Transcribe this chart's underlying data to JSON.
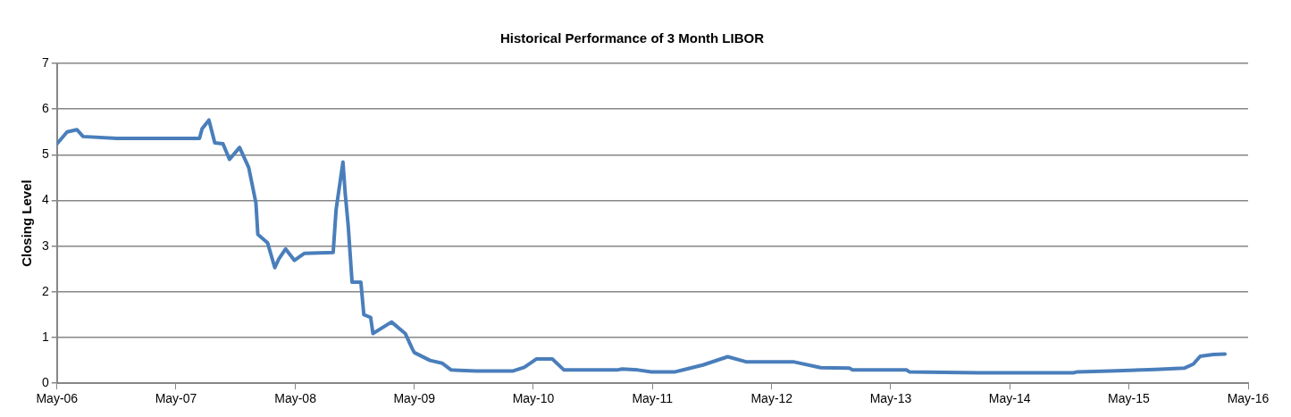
{
  "chart_data": {
    "type": "line",
    "title": "Historical Performance of 3 Month LIBOR",
    "ylabel": "Closing Level",
    "x": [
      "2006-05-01",
      "2006-06-01",
      "2006-07-01",
      "2006-07-20",
      "2006-11-01",
      "2007-07-12",
      "2007-07-20",
      "2007-08-10",
      "2007-08-28",
      "2007-09-22",
      "2007-10-12",
      "2007-11-12",
      "2007-12-10",
      "2008-01-01",
      "2008-01-07",
      "2008-02-06",
      "2008-02-28",
      "2008-03-12",
      "2008-04-01",
      "2008-04-28",
      "2008-05-28",
      "2008-08-25",
      "2008-09-03",
      "2008-09-24",
      "2008-10-01",
      "2008-10-10",
      "2008-10-22",
      "2008-11-18",
      "2008-11-27",
      "2008-12-18",
      "2008-12-25",
      "2009-02-20",
      "2009-04-03",
      "2009-04-25",
      "2009-05-01",
      "2009-06-18",
      "2009-07-25",
      "2009-08-22",
      "2009-11-06",
      "2010-02-28",
      "2010-04-03",
      "2010-05-10",
      "2010-06-28",
      "2010-08-03",
      "2011-01-12",
      "2011-01-28",
      "2011-03-18",
      "2011-04-28",
      "2011-07-10",
      "2011-10-03",
      "2011-12-18",
      "2012-02-12",
      "2012-04-08",
      "2012-07-06",
      "2012-09-28",
      "2012-12-25",
      "2013-01-04",
      "2013-06-18",
      "2013-06-28",
      "2014-01-25",
      "2014-02-22",
      "2014-11-12",
      "2014-11-25",
      "2015-03-03",
      "2015-07-22",
      "2015-10-18",
      "2015-11-15",
      "2015-12-06",
      "2016-01-15",
      "2016-02-20"
    ],
    "series": [
      {
        "color": "#4a7ebb",
        "values": [
          5.24,
          5.5,
          5.55,
          5.4,
          5.36,
          5.36,
          5.57,
          5.76,
          5.26,
          5.24,
          4.9,
          5.16,
          4.72,
          3.95,
          3.26,
          3.07,
          2.53,
          2.73,
          2.94,
          2.69,
          2.84,
          2.86,
          3.8,
          4.84,
          4.15,
          3.46,
          2.21,
          2.21,
          1.5,
          1.44,
          1.09,
          1.34,
          1.09,
          0.75,
          0.67,
          0.5,
          0.44,
          0.29,
          0.27,
          0.27,
          0.35,
          0.53,
          0.53,
          0.29,
          0.29,
          0.31,
          0.29,
          0.25,
          0.25,
          0.4,
          0.58,
          0.47,
          0.47,
          0.47,
          0.34,
          0.33,
          0.29,
          0.29,
          0.25,
          0.23,
          0.23,
          0.23,
          0.25,
          0.27,
          0.3,
          0.33,
          0.42,
          0.59,
          0.63,
          0.64
        ]
      }
    ],
    "xlim": [
      "2006-05-01",
      "2016-05-01"
    ],
    "xticks": [
      {
        "value": "2006-05-01",
        "label": "May-06"
      },
      {
        "value": "2007-05-01",
        "label": "May-07"
      },
      {
        "value": "2008-05-01",
        "label": "May-08"
      },
      {
        "value": "2009-05-01",
        "label": "May-09"
      },
      {
        "value": "2010-05-01",
        "label": "May-10"
      },
      {
        "value": "2011-05-01",
        "label": "May-11"
      },
      {
        "value": "2012-05-01",
        "label": "May-12"
      },
      {
        "value": "2013-05-01",
        "label": "May-13"
      },
      {
        "value": "2014-05-01",
        "label": "May-14"
      },
      {
        "value": "2015-05-01",
        "label": "May-15"
      },
      {
        "value": "2016-05-01",
        "label": "May-16"
      }
    ],
    "ylim": [
      0,
      7
    ],
    "yticks": [
      0,
      1,
      2,
      3,
      4,
      5,
      6,
      7
    ],
    "grid": "y",
    "legend": false,
    "marker": "none",
    "line_style": "solid"
  }
}
